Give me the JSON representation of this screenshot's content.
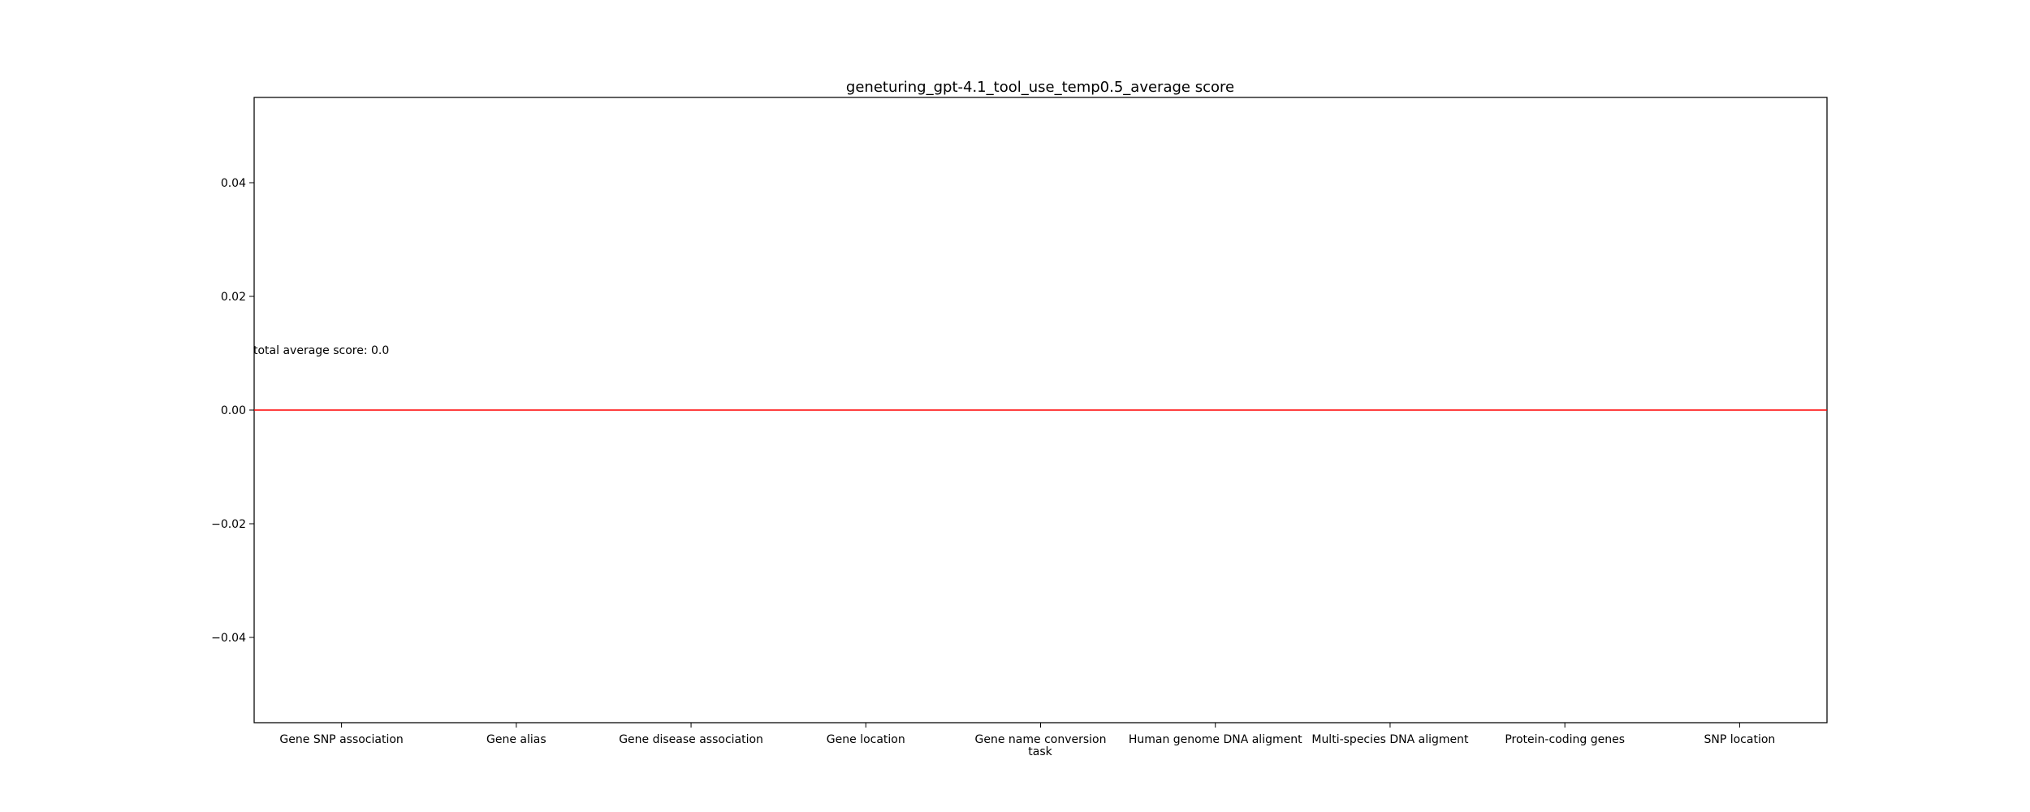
{
  "chart_data": {
    "type": "bar",
    "title": "geneturing_gpt-4.1_tool_use_temp0.5_average score",
    "xlabel": "task",
    "ylabel": "",
    "categories": [
      "Gene SNP association",
      "Gene alias",
      "Gene disease association",
      "Gene location",
      "Gene name conversion",
      "Human genome DNA aligment",
      "Multi-species DNA aligment",
      "Protein-coding genes",
      "SNP location"
    ],
    "values": [
      0,
      0,
      0,
      0,
      0,
      0,
      0,
      0,
      0
    ],
    "ylim": [
      -0.055,
      0.055
    ],
    "yticks": [
      -0.04,
      -0.02,
      0.0,
      0.02,
      0.04
    ],
    "ytick_labels": [
      "−0.04",
      "−0.02",
      "0.00",
      "0.02",
      "0.04"
    ],
    "reference_line": {
      "value": 0.0,
      "color": "#ff0000",
      "label": "total average score: 0.0"
    },
    "grid": false,
    "legend": "none"
  }
}
